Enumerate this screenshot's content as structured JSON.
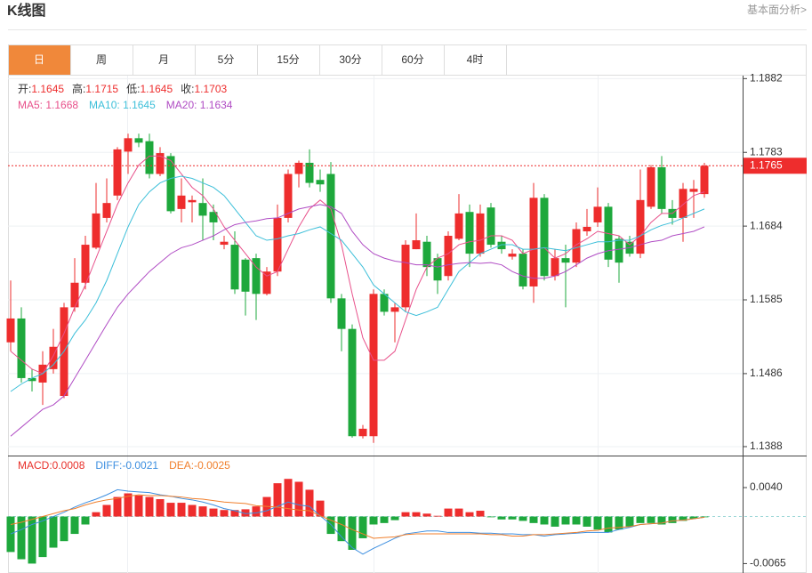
{
  "header": {
    "title": "K线图",
    "link": "基本面分析>"
  },
  "tabs": [
    "日",
    "周",
    "月",
    "5分",
    "15分",
    "30分",
    "60分",
    "4时"
  ],
  "active_tab": 0,
  "chart_data": [
    {
      "type": "candlestick",
      "info": [
        {
          "label": "开:",
          "value": 1.1645
        },
        {
          "label": "高:",
          "value": 1.1715
        },
        {
          "label": "低:",
          "value": 1.1645
        },
        {
          "label": "收:",
          "value": 1.1703
        }
      ],
      "up_color": "#ee2d2d",
      "down_color": "#1ea83c",
      "open": [
        1.1528,
        1.156,
        1.148,
        1.1474,
        1.1492,
        1.1456,
        1.1575,
        1.1608,
        1.1655,
        1.1695,
        1.1725,
        1.1784,
        1.1802,
        1.1798,
        1.1754,
        1.1778,
        1.1707,
        1.1716,
        1.1715,
        1.1703,
        1.1659,
        1.1659,
        1.1639,
        1.1641,
        1.1593,
        1.1623,
        1.1695,
        1.1754,
        1.1769,
        1.1746,
        1.1754,
        1.1587,
        1.1546,
        1.1402,
        1.1402,
        1.1593,
        1.1569,
        1.1575,
        1.1653,
        1.1663,
        1.1641,
        1.1617,
        1.1667,
        1.1703,
        1.1647,
        1.1709,
        1.1663,
        1.1643,
        1.1647,
        1.1603,
        1.1722,
        1.1617,
        1.1641,
        1.1635,
        1.1677,
        1.1689,
        1.171,
        1.1667,
        1.1663,
        1.1647,
        1.171,
        1.1763,
        1.1707,
        1.1695,
        1.173,
        1.1727
      ],
      "high": [
        1.1611,
        1.1575,
        1.1492,
        1.1516,
        1.1546,
        1.1581,
        1.1641,
        1.1671,
        1.1742,
        1.1748,
        1.179,
        1.1808,
        1.1808,
        1.1808,
        1.179,
        1.1782,
        1.1748,
        1.1725,
        1.1748,
        1.1713,
        1.1671,
        1.1677,
        1.1641,
        1.1647,
        1.1629,
        1.1713,
        1.176,
        1.1772,
        1.1787,
        1.176,
        1.177,
        1.1593,
        1.1552,
        1.1417,
        1.1599,
        1.1599,
        1.1581,
        1.1665,
        1.1701,
        1.1671,
        1.1647,
        1.1677,
        1.1727,
        1.1713,
        1.1713,
        1.1715,
        1.1671,
        1.1653,
        1.1653,
        1.1742,
        1.1727,
        1.1653,
        1.1659,
        1.1689,
        1.1707,
        1.1736,
        1.1715,
        1.1671,
        1.1671,
        1.176,
        1.1766,
        1.1778,
        1.1719,
        1.1742,
        1.1746,
        1.1769
      ],
      "low": [
        1.1516,
        1.1474,
        1.1462,
        1.1444,
        1.1486,
        1.1453,
        1.1569,
        1.1599,
        1.1653,
        1.1689,
        1.1719,
        1.1754,
        1.179,
        1.1748,
        1.1751,
        1.1701,
        1.1689,
        1.1689,
        1.1665,
        1.1665,
        1.1653,
        1.1593,
        1.1564,
        1.1558,
        1.1591,
        1.1617,
        1.1689,
        1.1736,
        1.1736,
        1.173,
        1.1581,
        1.1516,
        1.14,
        1.1399,
        1.1393,
        1.1564,
        1.1528,
        1.1569,
        1.1653,
        1.1617,
        1.1593,
        1.1611,
        1.1665,
        1.1629,
        1.1643,
        1.1655,
        1.1647,
        1.1639,
        1.1599,
        1.1581,
        1.1611,
        1.1611,
        1.1575,
        1.1629,
        1.1671,
        1.1683,
        1.1629,
        1.1608,
        1.1643,
        1.1641,
        1.1707,
        1.1701,
        1.1686,
        1.1663,
        1.1695,
        1.1722
      ],
      "close": [
        1.156,
        1.148,
        1.1476,
        1.1498,
        1.1522,
        1.1575,
        1.1608,
        1.1659,
        1.1701,
        1.1715,
        1.1787,
        1.1802,
        1.1796,
        1.1754,
        1.1782,
        1.1704,
        1.1725,
        1.1719,
        1.1698,
        1.1689,
        1.1663,
        1.1599,
        1.1596,
        1.1593,
        1.1623,
        1.1695,
        1.1754,
        1.1769,
        1.1742,
        1.174,
        1.1587,
        1.1546,
        1.1402,
        1.1412,
        1.1593,
        1.1569,
        1.1575,
        1.1659,
        1.1665,
        1.1629,
        1.1611,
        1.1671,
        1.1701,
        1.1647,
        1.1701,
        1.1659,
        1.1653,
        1.1647,
        1.1603,
        1.1722,
        1.1617,
        1.1641,
        1.1635,
        1.168,
        1.1683,
        1.171,
        1.1639,
        1.1635,
        1.1647,
        1.1719,
        1.1763,
        1.1707,
        1.1695,
        1.1734,
        1.1734,
        1.1765
      ],
      "series": [
        {
          "name": "MA5: 1.1668",
          "color": "#e8508a",
          "values": [
            1.1516,
            1.1504,
            1.1492,
            1.1486,
            1.151,
            1.154,
            1.1575,
            1.1605,
            1.1641,
            1.1677,
            1.1713,
            1.1742,
            1.1766,
            1.1778,
            1.1778,
            1.1772,
            1.1754,
            1.1736,
            1.1725,
            1.1707,
            1.1683,
            1.1665,
            1.1647,
            1.1629,
            1.1617,
            1.1623,
            1.1653,
            1.1683,
            1.1707,
            1.1719,
            1.1707,
            1.1659,
            1.1593,
            1.1534,
            1.1504,
            1.1504,
            1.1516,
            1.1558,
            1.1599,
            1.1629,
            1.1641,
            1.1647,
            1.1659,
            1.1663,
            1.1665,
            1.1671,
            1.1671,
            1.1665,
            1.1647,
            1.1653,
            1.1655,
            1.1641,
            1.1647,
            1.1659,
            1.1667,
            1.1677,
            1.1674,
            1.1671,
            1.1659,
            1.1671,
            1.1689,
            1.1701,
            1.1701,
            1.1713,
            1.1725,
            1.173
          ]
        },
        {
          "name": "MA10: 1.1645",
          "color": "#3cbfd9",
          "values": [
            1.1462,
            1.1472,
            1.148,
            1.1486,
            1.1498,
            1.1516,
            1.154,
            1.1558,
            1.1581,
            1.1611,
            1.1647,
            1.1683,
            1.1713,
            1.173,
            1.1742,
            1.1748,
            1.1751,
            1.1748,
            1.1742,
            1.1736,
            1.1725,
            1.1707,
            1.1689,
            1.1671,
            1.1665,
            1.1667,
            1.1671,
            1.1674,
            1.1679,
            1.1683,
            1.1674,
            1.1665,
            1.1647,
            1.1629,
            1.1605,
            1.1593,
            1.1581,
            1.1569,
            1.1564,
            1.1569,
            1.1575,
            1.1599,
            1.1623,
            1.1635,
            1.1647,
            1.1653,
            1.1659,
            1.1659,
            1.1653,
            1.1653,
            1.1655,
            1.1653,
            1.1651,
            1.1655,
            1.1659,
            1.1663,
            1.1663,
            1.1665,
            1.1665,
            1.1671,
            1.1679,
            1.1685,
            1.1689,
            1.1695,
            1.1701,
            1.1707
          ]
        },
        {
          "name": "MA20: 1.1634",
          "color": "#b04cc4",
          "values": [
            1.1402,
            1.1414,
            1.1426,
            1.1438,
            1.1444,
            1.1456,
            1.148,
            1.1504,
            1.1528,
            1.1552,
            1.1575,
            1.1593,
            1.1608,
            1.1623,
            1.1635,
            1.1647,
            1.1655,
            1.1659,
            1.1665,
            1.1671,
            1.1679,
            1.1686,
            1.1689,
            1.1691,
            1.1694,
            1.1695,
            1.1701,
            1.1707,
            1.171,
            1.1713,
            1.171,
            1.1701,
            1.1677,
            1.1659,
            1.1647,
            1.1641,
            1.1637,
            1.1635,
            1.1632,
            1.1632,
            1.1629,
            1.1632,
            1.1634,
            1.1635,
            1.1634,
            1.1635,
            1.1632,
            1.1623,
            1.1617,
            1.1614,
            1.1614,
            1.1617,
            1.1623,
            1.1632,
            1.1641,
            1.1647,
            1.1651,
            1.1653,
            1.1655,
            1.1659,
            1.1663,
            1.1665,
            1.1671,
            1.1674,
            1.1677,
            1.1683
          ]
        }
      ],
      "current": 1.1765,
      "ylim": [
        1.1376,
        1.1886
      ],
      "yticks": [
        1.1882,
        1.1783,
        1.1684,
        1.1585,
        1.1486,
        1.1388
      ],
      "grid": true
    },
    {
      "type": "macd",
      "info": [
        {
          "label": "MACD:",
          "value": 0.0008,
          "color": "#e8302a"
        },
        {
          "label": "DIFF:",
          "value": -0.0021,
          "color": "#3d8fe0"
        },
        {
          "label": "DEA:",
          "value": -0.0025,
          "color": "#f07f2c"
        }
      ],
      "up_color": "#ee2d2d",
      "down_color": "#1ea83c",
      "values": [
        -0.0049,
        -0.0059,
        -0.0065,
        -0.0056,
        -0.0043,
        -0.0034,
        -0.0024,
        -0.0011,
        0.0006,
        0.0016,
        0.0027,
        0.0032,
        0.0029,
        0.0027,
        0.0024,
        0.0019,
        0.0019,
        0.0016,
        0.0014,
        0.0011,
        0.0009,
        0.0009,
        0.001,
        0.0014,
        0.0027,
        0.0046,
        0.0052,
        0.0048,
        0.0037,
        0.0022,
        -0.0024,
        -0.0034,
        -0.0046,
        -0.003,
        -0.0011,
        -0.0009,
        -0.0005,
        0.0006,
        0.0006,
        0.0004,
        0.0001,
        0.0011,
        0.0011,
        0.0006,
        0.0008,
        -0.0001,
        -0.0004,
        -0.0004,
        -0.0006,
        -0.0009,
        -0.0011,
        -0.0014,
        -0.0011,
        -0.0011,
        -0.0014,
        -0.0018,
        -0.0022,
        -0.0018,
        -0.0014,
        -0.0009,
        -0.0009,
        -0.0011,
        -0.0009,
        -0.0006,
        -0.0003,
        -0.0001
      ],
      "series": [
        {
          "color": "#3d8fe0",
          "values": [
            -0.0024,
            -0.0018,
            -0.0011,
            -0.0006,
            0.0,
            0.0006,
            0.0013,
            0.0019,
            0.0024,
            0.003,
            0.0037,
            0.0035,
            0.0034,
            0.0033,
            0.003,
            0.0028,
            0.0025,
            0.0023,
            0.002,
            0.0016,
            0.0011,
            0.0008,
            0.0004,
            0.0005,
            0.0008,
            0.0014,
            0.002,
            0.0016,
            0.0014,
            0.0001,
            -0.0011,
            -0.0028,
            -0.0043,
            -0.0052,
            -0.0044,
            -0.0037,
            -0.003,
            -0.0024,
            -0.0022,
            -0.002,
            -0.002,
            -0.0022,
            -0.0022,
            -0.0022,
            -0.0023,
            -0.0023,
            -0.0024,
            -0.0024,
            -0.0025,
            -0.0025,
            -0.0027,
            -0.0025,
            -0.0024,
            -0.0023,
            -0.0022,
            -0.0022,
            -0.0022,
            -0.0018,
            -0.0015,
            -0.0011,
            -0.001,
            -0.0009,
            -0.0006,
            -0.0005,
            -0.0003,
            -0.0001
          ]
        },
        {
          "color": "#f07f2c",
          "values": [
            -0.0011,
            -0.0008,
            -0.0004,
            0.0,
            0.0004,
            0.0008,
            0.0011,
            0.0016,
            0.002,
            0.0023,
            0.0025,
            0.0028,
            0.003,
            0.0029,
            0.0029,
            0.0028,
            0.0027,
            0.0025,
            0.0024,
            0.0022,
            0.002,
            0.0019,
            0.0018,
            0.0015,
            0.0014,
            0.0013,
            0.0011,
            0.0009,
            0.0008,
            0.0001,
            -0.0005,
            -0.0011,
            -0.0018,
            -0.0024,
            -0.003,
            -0.0029,
            -0.0028,
            -0.0025,
            -0.0024,
            -0.0024,
            -0.0024,
            -0.0024,
            -0.0024,
            -0.0024,
            -0.0024,
            -0.0025,
            -0.0025,
            -0.0027,
            -0.0027,
            -0.0025,
            -0.0025,
            -0.0024,
            -0.0023,
            -0.0022,
            -0.002,
            -0.0019,
            -0.0016,
            -0.0015,
            -0.0014,
            -0.0011,
            -0.001,
            -0.0009,
            -0.0006,
            -0.0005,
            -0.0003,
            -0.0001
          ]
        }
      ],
      "ylim": [
        -0.0078,
        0.0083
      ],
      "yticks": [
        {
          "value": 0.004,
          "label": "0.0040"
        },
        {
          "value": -0.0065,
          "label": "-0.0065"
        }
      ],
      "grid": false
    }
  ]
}
